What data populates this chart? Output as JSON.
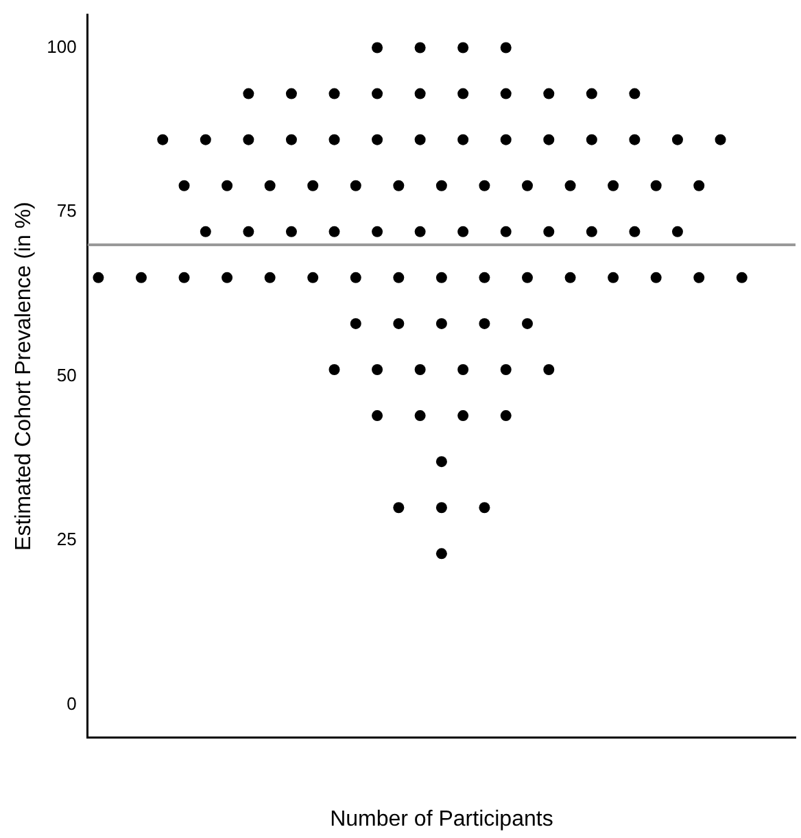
{
  "chart_data": {
    "type": "scatter",
    "xlabel": "Number of Participants",
    "ylabel": "Estimated Cohort Prevalence (in %)",
    "categories": [
      null,
      null,
      null,
      null,
      null,
      null,
      null,
      null,
      null,
      null,
      null,
      null,
      null,
      null,
      null,
      null,
      null,
      null,
      null,
      null,
      null,
      null,
      null,
      null,
      null,
      null,
      null,
      null,
      null,
      null,
      null,
      null,
      null
    ],
    "ylim": [
      -5,
      105
    ],
    "yticks": [
      0,
      25,
      50,
      75,
      100
    ],
    "tick_labels": "y",
    "grid": false,
    "legend": false,
    "marker": "circle",
    "ref_lines": [
      {
        "axis": "y",
        "value": 70,
        "color": "#999999"
      }
    ],
    "series": [
      {
        "color": "#000000",
        "values": [
          null,
          null,
          null,
          null,
          null,
          null,
          null,
          null,
          null,
          null,
          null,
          null,
          null,
          100,
          null,
          100,
          null,
          100,
          null,
          100,
          null,
          null,
          null,
          null,
          null,
          null,
          null,
          null,
          null,
          null,
          null,
          null,
          null
        ]
      },
      {
        "color": "#000000",
        "values": [
          null,
          null,
          null,
          null,
          null,
          null,
          null,
          93,
          null,
          93,
          null,
          93,
          null,
          93,
          null,
          93,
          null,
          93,
          null,
          93,
          null,
          93,
          null,
          93,
          null,
          93,
          null,
          null,
          null,
          null,
          null,
          null,
          null
        ]
      },
      {
        "color": "#000000",
        "values": [
          null,
          null,
          null,
          86,
          null,
          86,
          null,
          86,
          null,
          86,
          null,
          86,
          null,
          86,
          null,
          86,
          null,
          86,
          null,
          86,
          null,
          86,
          null,
          86,
          null,
          86,
          null,
          86,
          null,
          86,
          null,
          null,
          null
        ]
      },
      {
        "color": "#000000",
        "values": [
          null,
          null,
          null,
          null,
          79,
          null,
          79,
          null,
          79,
          null,
          79,
          null,
          79,
          null,
          79,
          null,
          79,
          null,
          79,
          null,
          79,
          null,
          79,
          null,
          79,
          null,
          79,
          null,
          79,
          null,
          null,
          null,
          null
        ]
      },
      {
        "color": "#000000",
        "values": [
          null,
          null,
          null,
          null,
          null,
          72,
          null,
          72,
          null,
          72,
          null,
          72,
          null,
          72,
          null,
          72,
          null,
          72,
          null,
          72,
          null,
          72,
          null,
          72,
          null,
          72,
          null,
          72,
          null,
          null,
          null,
          null,
          null
        ]
      },
      {
        "color": "#000000",
        "values": [
          65,
          null,
          65,
          null,
          65,
          null,
          65,
          null,
          65,
          null,
          65,
          null,
          65,
          null,
          65,
          null,
          65,
          null,
          65,
          null,
          65,
          null,
          65,
          null,
          65,
          null,
          65,
          null,
          65,
          null,
          65,
          null,
          null
        ]
      },
      {
        "color": "#000000",
        "values": [
          null,
          null,
          null,
          null,
          null,
          null,
          null,
          null,
          null,
          null,
          null,
          null,
          58,
          null,
          58,
          null,
          58,
          null,
          58,
          null,
          58,
          null,
          null,
          null,
          null,
          null,
          null,
          null,
          null,
          null,
          null,
          null,
          null
        ]
      },
      {
        "color": "#000000",
        "values": [
          null,
          null,
          null,
          null,
          null,
          null,
          null,
          null,
          null,
          null,
          null,
          51,
          null,
          51,
          null,
          51,
          null,
          51,
          null,
          51,
          null,
          51,
          null,
          null,
          null,
          null,
          null,
          null,
          null,
          null,
          null,
          null,
          null
        ]
      },
      {
        "color": "#000000",
        "values": [
          null,
          null,
          null,
          null,
          null,
          null,
          null,
          null,
          null,
          null,
          null,
          null,
          null,
          44,
          null,
          44,
          null,
          44,
          null,
          44,
          null,
          null,
          null,
          null,
          null,
          null,
          null,
          null,
          null,
          null,
          null,
          null,
          null
        ]
      },
      {
        "color": "#000000",
        "values": [
          null,
          null,
          null,
          null,
          null,
          null,
          null,
          null,
          null,
          null,
          null,
          null,
          null,
          null,
          null,
          null,
          37,
          null,
          null,
          null,
          null,
          null,
          null,
          null,
          null,
          null,
          null,
          null,
          null,
          null,
          null,
          null,
          null
        ]
      },
      {
        "color": "#000000",
        "values": [
          null,
          null,
          null,
          null,
          null,
          null,
          null,
          null,
          null,
          null,
          null,
          null,
          null,
          null,
          30,
          null,
          30,
          null,
          30,
          null,
          null,
          null,
          null,
          null,
          null,
          null,
          null,
          null,
          null,
          null,
          null,
          null,
          null
        ]
      },
      {
        "color": "#000000",
        "values": [
          null,
          null,
          null,
          null,
          null,
          null,
          null,
          null,
          null,
          null,
          null,
          null,
          null,
          null,
          null,
          null,
          23,
          null,
          null,
          null,
          null,
          null,
          null,
          null,
          null,
          null,
          null,
          null,
          null,
          null,
          null,
          null,
          null
        ]
      }
    ]
  }
}
